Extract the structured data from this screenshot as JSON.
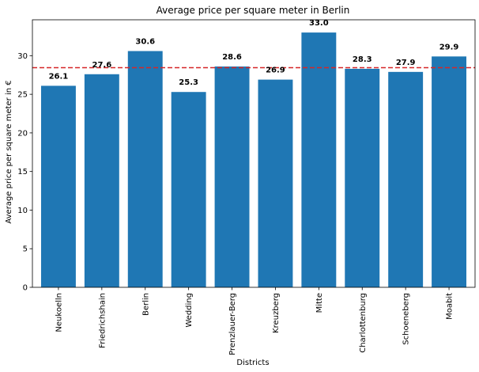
{
  "chart_data": {
    "type": "bar",
    "title": "Average price per square meter in Berlin",
    "xlabel": "Districts",
    "ylabel": "Average price per square meter in €",
    "categories": [
      "Neukoelln",
      "Friedrichshain",
      "Berlin",
      "Wedding",
      "Prenzlauer-Berg",
      "Kreuzberg",
      "Mitte",
      "Charlottenburg",
      "Schoeneberg",
      "Moabit"
    ],
    "values": [
      26.1,
      27.6,
      30.6,
      25.3,
      28.6,
      26.9,
      33.0,
      28.3,
      27.9,
      29.9
    ],
    "data_labels": [
      "26.1",
      "27.6",
      "30.6",
      "25.3",
      "28.6",
      "26.9",
      "33.0",
      "28.3",
      "27.9",
      "29.9"
    ],
    "ylim": [
      0,
      34.65
    ],
    "yticks": [
      0,
      5,
      10,
      15,
      20,
      25,
      30
    ],
    "ytick_labels": [
      "0",
      "5",
      "10",
      "15",
      "20",
      "25",
      "30"
    ],
    "reference_line": {
      "value": 28.45,
      "style": "dashed"
    },
    "grid": false,
    "colors": {
      "bar": "#1f77b4",
      "reference_line": "#d62728"
    }
  }
}
